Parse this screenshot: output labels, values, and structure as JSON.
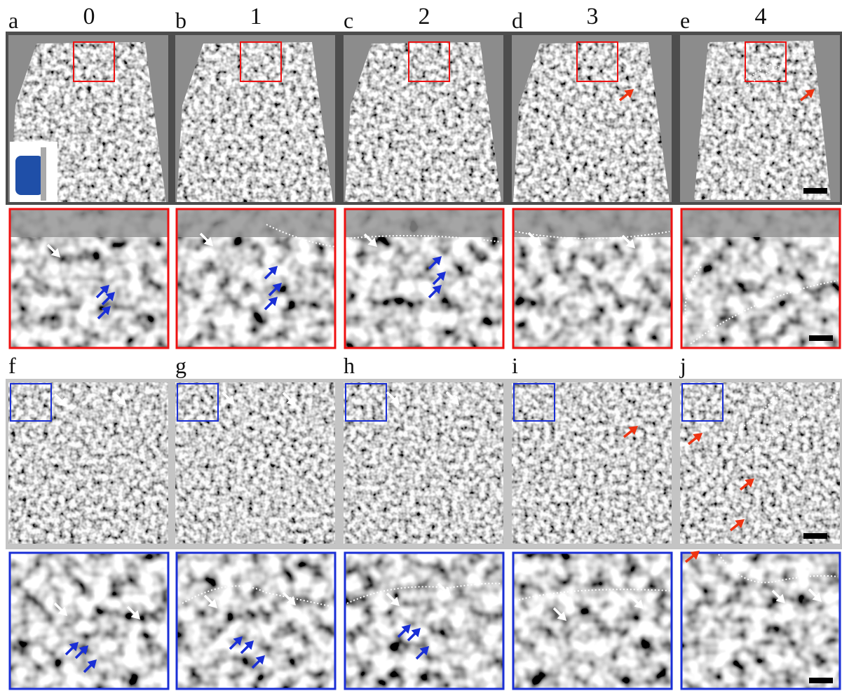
{
  "top_row": {
    "columns": [
      {
        "letter": "a",
        "number": "0"
      },
      {
        "letter": "b",
        "number": "1"
      },
      {
        "letter": "c",
        "number": "2"
      },
      {
        "letter": "d",
        "number": "3"
      },
      {
        "letter": "e",
        "number": "4"
      }
    ]
  },
  "bottom_row": {
    "letters": [
      "f",
      "g",
      "h",
      "i",
      "j"
    ]
  }
}
